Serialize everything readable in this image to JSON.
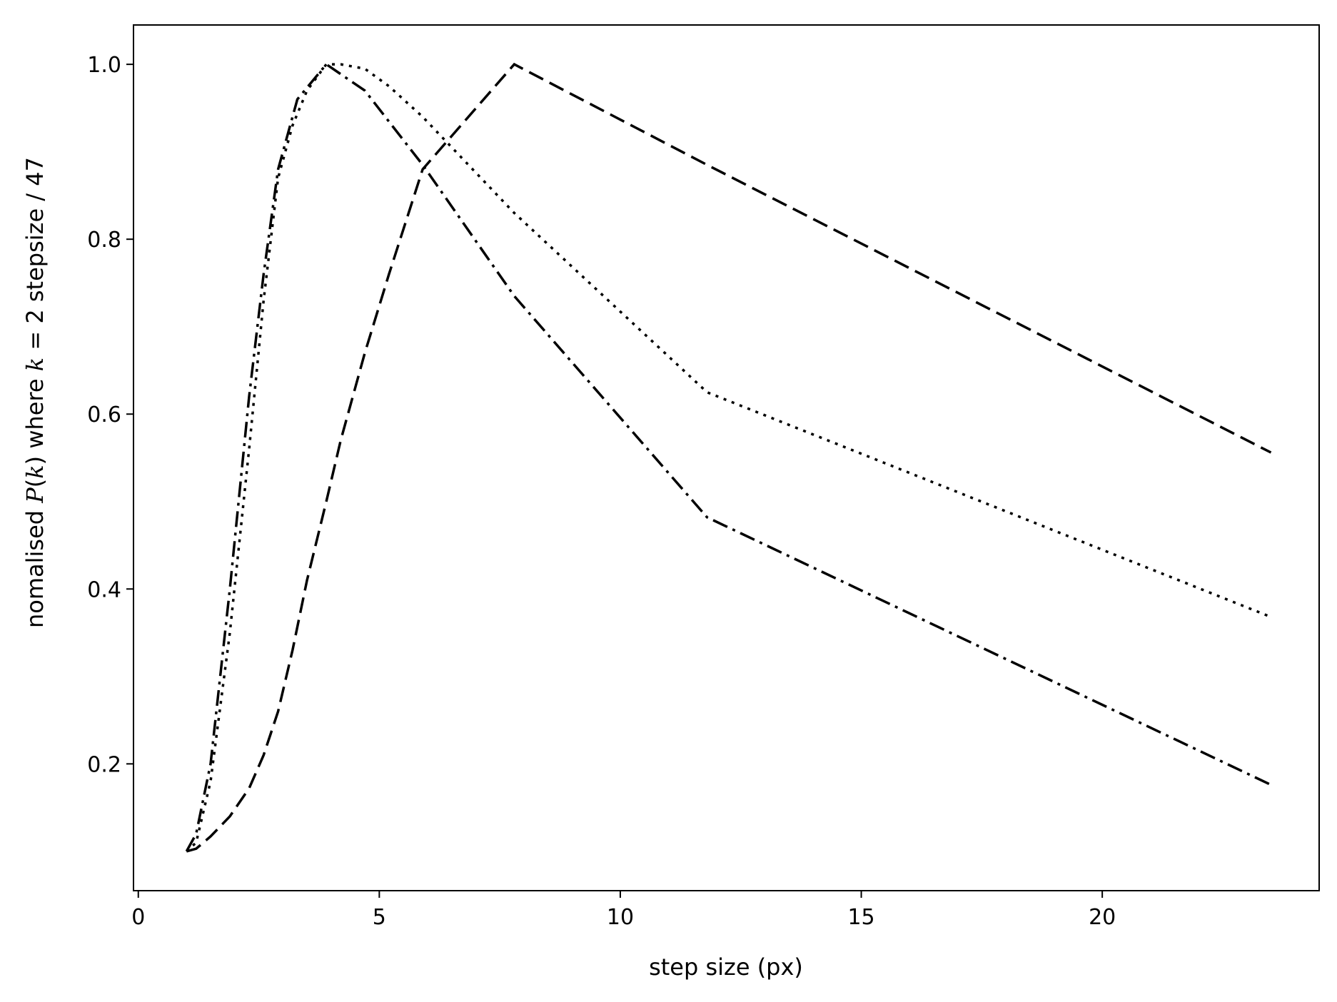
{
  "chart_data": {
    "type": "line",
    "title": "",
    "xlabel": "step size (px)",
    "ylabel": {
      "prefix": "nomalised ",
      "italic1": "P",
      "mid1": "(",
      "italic2": "k",
      "mid2": ") where ",
      "italic3": "k",
      "suffix": " = 2 stepsize / 47"
    },
    "xlim": [
      -0.1,
      24.5
    ],
    "ylim": [
      0.055,
      1.045
    ],
    "xticks": [
      0,
      5,
      10,
      15,
      20
    ],
    "xtick_labels": [
      "0",
      "5",
      "10",
      "15",
      "20"
    ],
    "yticks": [
      0.2,
      0.4,
      0.6,
      0.8,
      1.0
    ],
    "ytick_labels": [
      "0.2",
      "0.4",
      "0.6",
      "0.8",
      "1.0"
    ],
    "grid": false,
    "legend": "none",
    "line_color": "#000000",
    "series": [
      {
        "style": "dashed",
        "x": [
          1.0,
          1.2,
          1.5,
          1.9,
          2.3,
          2.6,
          2.9,
          3.2,
          3.5,
          3.9,
          4.2,
          4.7,
          5.2,
          5.9,
          7.8,
          11.8,
          23.5
        ],
        "y": [
          0.1,
          0.103,
          0.117,
          0.14,
          0.172,
          0.21,
          0.26,
          0.33,
          0.41,
          0.5,
          0.57,
          0.67,
          0.76,
          0.88,
          1.0,
          0.885,
          0.556
        ]
      },
      {
        "style": "dotted",
        "x": [
          1.0,
          1.2,
          1.5,
          1.9,
          2.3,
          2.6,
          2.9,
          3.2,
          3.5,
          3.9,
          4.2,
          4.7,
          5.2,
          5.9,
          7.8,
          11.8,
          23.5
        ],
        "y": [
          0.1,
          0.11,
          0.18,
          0.35,
          0.56,
          0.73,
          0.87,
          0.93,
          0.97,
          1.0,
          1.0,
          0.995,
          0.975,
          0.94,
          0.83,
          0.625,
          0.368
        ]
      },
      {
        "style": "dashdot",
        "x": [
          1.0,
          1.2,
          1.5,
          1.9,
          2.3,
          2.6,
          2.9,
          3.3,
          3.9,
          4.7,
          5.9,
          7.8,
          11.8,
          23.5
        ],
        "y": [
          0.1,
          0.12,
          0.2,
          0.4,
          0.62,
          0.76,
          0.88,
          0.96,
          1.0,
          0.97,
          0.885,
          0.735,
          0.482,
          0.176
        ]
      }
    ]
  }
}
